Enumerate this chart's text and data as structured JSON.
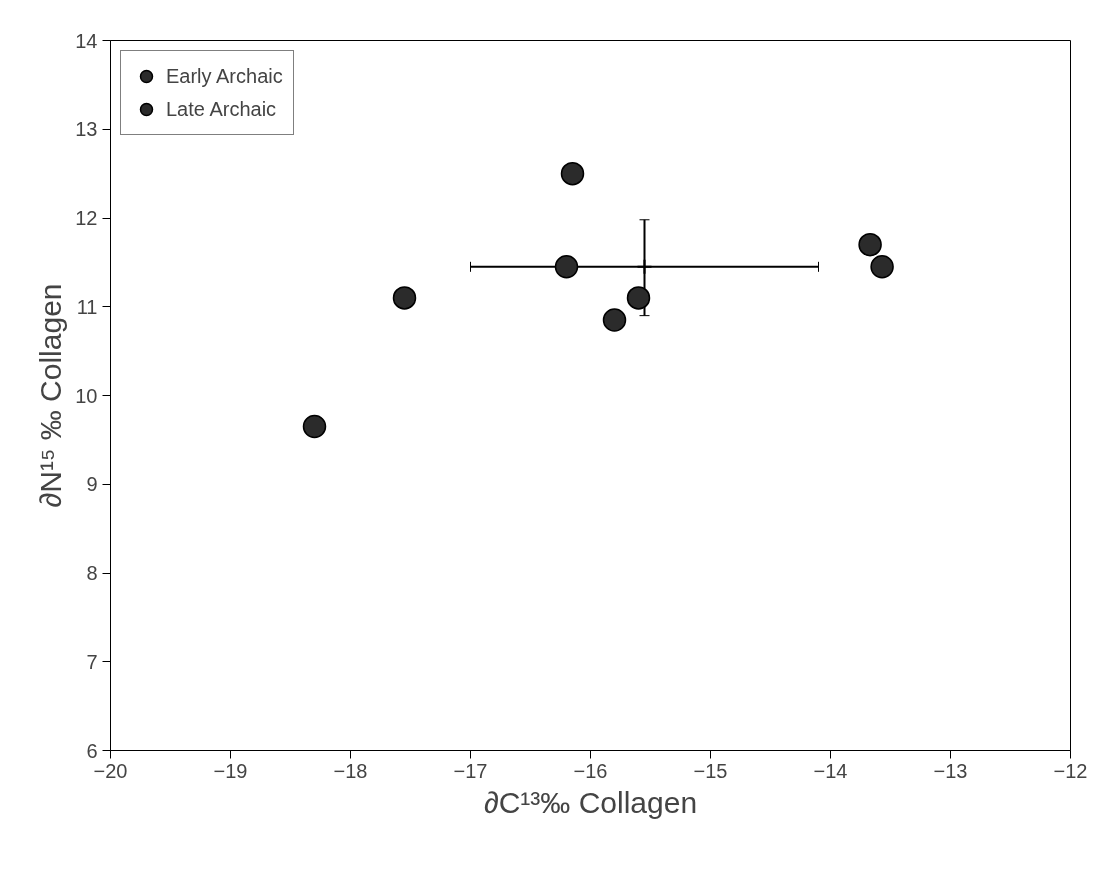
{
  "chart_data": {
    "type": "scatter",
    "xlabel": "∂C¹³‰ Collagen",
    "ylabel": "∂N¹⁵ ‰ Collagen",
    "xlim": [
      -20,
      -12
    ],
    "ylim": [
      6,
      14
    ],
    "xticks": [
      -20,
      -19,
      -18,
      -17,
      -16,
      -15,
      -14,
      -13,
      -12
    ],
    "yticks": [
      6,
      7,
      8,
      9,
      10,
      11,
      12,
      13,
      14
    ],
    "grid": false,
    "legend": "top left",
    "marker": "circle",
    "series": [
      {
        "name": "Early Archaic",
        "color": "#2b2b2b",
        "x": [
          -17.55,
          -16.15,
          -16.2,
          -15.6,
          -15.8,
          -13.67,
          -13.57
        ],
        "values": [
          11.1,
          12.5,
          11.45,
          11.1,
          10.85,
          11.7,
          11.45
        ]
      },
      {
        "name": "Late Archaic",
        "color": "#2b2b2b",
        "x": [
          -18.3
        ],
        "values": [
          9.65
        ]
      },
      {
        "color": "#000000",
        "marker": "cross",
        "x": [
          -15.55
        ],
        "values": [
          11.45
        ],
        "errors": [
          [
            10.9,
            11.98
          ]
        ],
        "xerrors": [
          [
            -17.0,
            -14.1
          ]
        ]
      }
    ]
  }
}
